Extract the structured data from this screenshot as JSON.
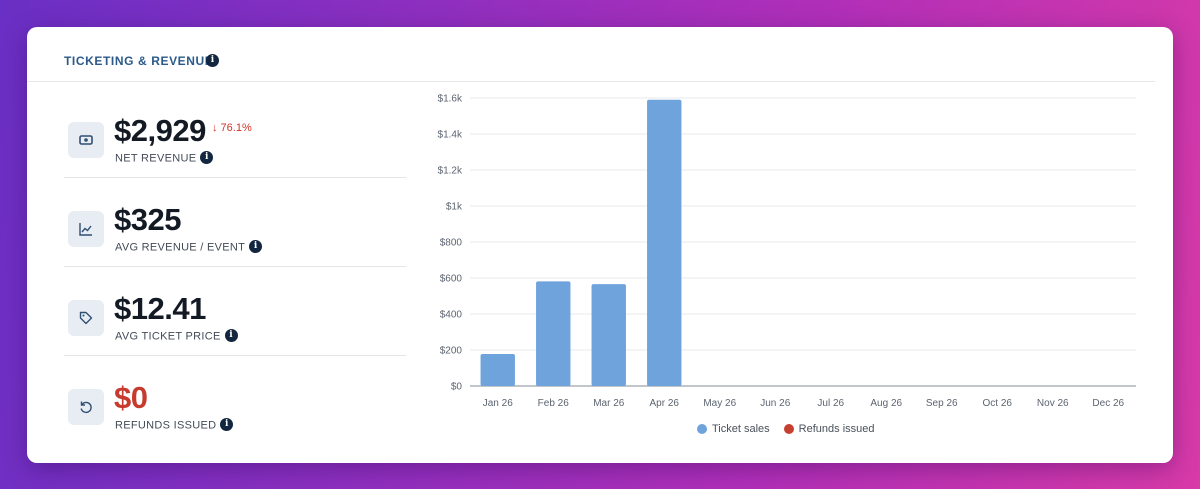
{
  "header": {
    "title": "TICKETING & REVENUE",
    "info_icon": "info-icon"
  },
  "stats": [
    {
      "value": "$2,929",
      "delta": "↓ 76.1%",
      "label": "NET REVENUE",
      "icon": "cash-icon"
    },
    {
      "value": "$325",
      "label": "AVG REVENUE / EVENT",
      "icon": "line-chart-icon"
    },
    {
      "value": "$12.41",
      "label": "AVG TICKET PRICE",
      "icon": "tag-icon"
    },
    {
      "value": "$0",
      "label": "REFUNDS ISSUED",
      "icon": "refund-icon"
    }
  ],
  "colors": {
    "accent": "#2b5a8a",
    "bar": "#6fa3dc",
    "refund": "#c6402f",
    "delta_down": "#d03327"
  },
  "chart_data": {
    "type": "bar",
    "categories": [
      "Jan 26",
      "Feb 26",
      "Mar 26",
      "Apr 26",
      "May 26",
      "Jun 26",
      "Jul 26",
      "Aug 26",
      "Sep 26",
      "Oct 26",
      "Nov 26",
      "Dec 26"
    ],
    "series": [
      {
        "name": "Ticket sales",
        "color": "#6fa3dc",
        "values": [
          178,
          581,
          566,
          1590,
          0,
          0,
          0,
          0,
          0,
          0,
          0,
          0
        ]
      },
      {
        "name": "Refunds issued",
        "color": "#c6402f",
        "values": [
          0,
          0,
          0,
          0,
          0,
          0,
          0,
          0,
          0,
          0,
          0,
          0
        ]
      }
    ],
    "yticks": [
      "$0",
      "$200",
      "$400",
      "$600",
      "$800",
      "$1k",
      "$1.2k",
      "$1.4k",
      "$1.6k"
    ],
    "ylim": [
      0,
      1600
    ],
    "legend": "bottom",
    "grid": true
  }
}
